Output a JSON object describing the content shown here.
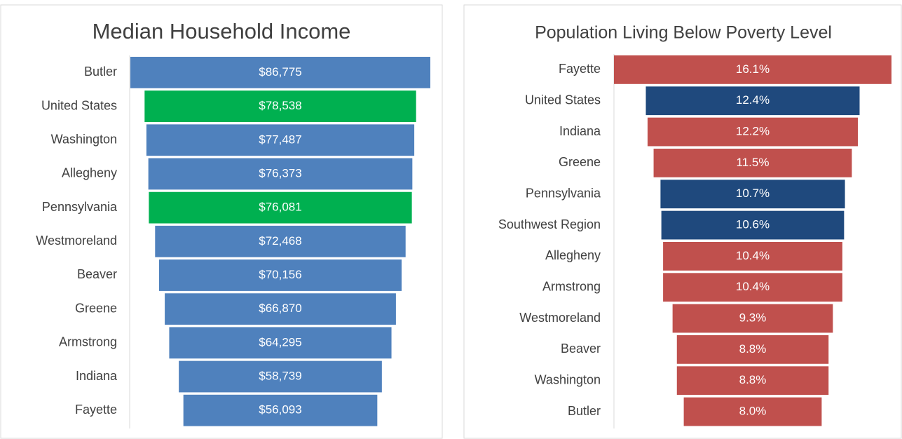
{
  "chart_data": [
    {
      "type": "funnel",
      "title": "Median Household Income",
      "categories": [
        "Butler",
        "United States",
        "Washington",
        "Allegheny",
        "Pennsylvania",
        "Westmoreland",
        "Beaver",
        "Greene",
        "Armstrong",
        "Indiana",
        "Fayette"
      ],
      "values": [
        86775,
        78538,
        77487,
        76373,
        76081,
        72468,
        70156,
        66870,
        64295,
        58739,
        56093
      ],
      "value_labels": [
        "$86,775",
        "$78,538",
        "$77,487",
        "$76,373",
        "$76,081",
        "$72,468",
        "$70,156",
        "$66,870",
        "$64,295",
        "$58,739",
        "$56,093"
      ],
      "colors": [
        "#4f81bd",
        "#00b050",
        "#4f81bd",
        "#4f81bd",
        "#00b050",
        "#4f81bd",
        "#4f81bd",
        "#4f81bd",
        "#4f81bd",
        "#4f81bd",
        "#4f81bd"
      ],
      "xlim": [
        0,
        86775
      ]
    },
    {
      "type": "funnel",
      "title": "Population Living Below Poverty Level",
      "categories": [
        "Fayette",
        "United States",
        "Indiana",
        "Greene",
        "Pennsylvania",
        "Southwest Region",
        "Allegheny",
        "Armstrong",
        "Westmoreland",
        "Beaver",
        "Washington",
        "Butler"
      ],
      "values": [
        16.1,
        12.4,
        12.2,
        11.5,
        10.7,
        10.6,
        10.4,
        10.4,
        9.3,
        8.8,
        8.8,
        8.0
      ],
      "value_labels": [
        "16.1%",
        "12.4%",
        "12.2%",
        "11.5%",
        "10.7%",
        "10.6%",
        "10.4%",
        "10.4%",
        "9.3%",
        "8.8%",
        "8.8%",
        "8.0%"
      ],
      "colors": [
        "#c0504d",
        "#1f497d",
        "#c0504d",
        "#c0504d",
        "#1f497d",
        "#1f497d",
        "#c0504d",
        "#c0504d",
        "#c0504d",
        "#c0504d",
        "#c0504d",
        "#c0504d"
      ],
      "xlim": [
        0,
        16.1
      ]
    }
  ]
}
